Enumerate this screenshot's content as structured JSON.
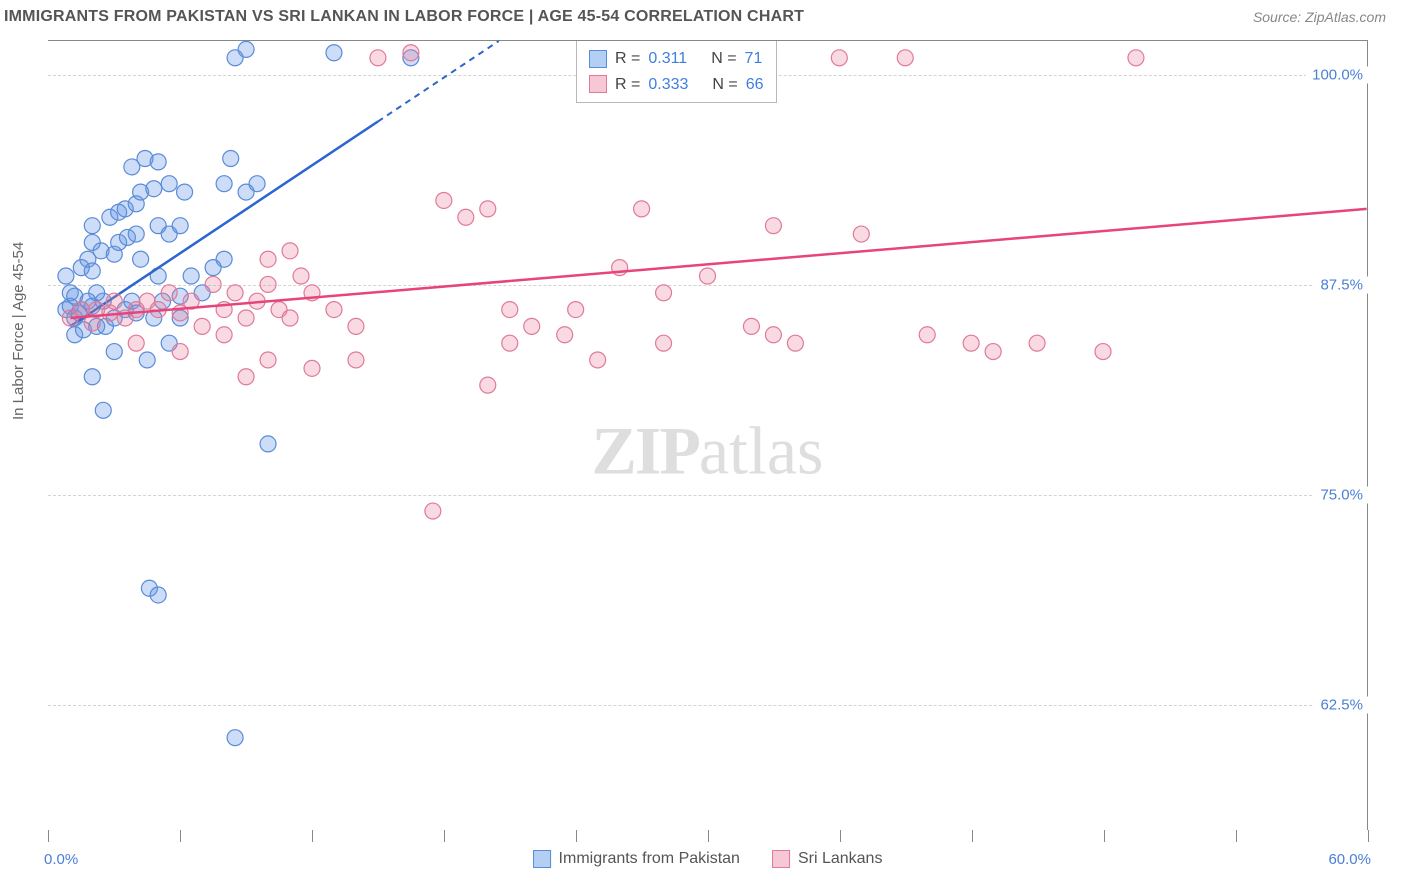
{
  "title": "IMMIGRANTS FROM PAKISTAN VS SRI LANKAN IN LABOR FORCE | AGE 45-54 CORRELATION CHART",
  "source": "Source: ZipAtlas.com",
  "watermark": {
    "zip": "ZIP",
    "atlas": "atlas"
  },
  "yaxis_title": "In Labor Force | Age 45-54",
  "chart": {
    "type": "scatter",
    "xlim": [
      0.0,
      60.0
    ],
    "ylim": [
      55.0,
      102.0
    ],
    "x_tick_positions": [
      0,
      6,
      12,
      18,
      24,
      30,
      36,
      42,
      48,
      54,
      60
    ],
    "x_label_min": "0.0%",
    "x_label_max": "60.0%",
    "y_gridlines": [
      {
        "value": 100.0,
        "label": "100.0%"
      },
      {
        "value": 87.5,
        "label": "87.5%"
      },
      {
        "value": 75.0,
        "label": "75.0%"
      },
      {
        "value": 62.5,
        "label": "62.5%"
      }
    ],
    "background_color": "#ffffff",
    "grid_color": "#d3d3d3",
    "axis_color": "#888888",
    "series": [
      {
        "id": "pakistan",
        "name": "Immigrants from Pakistan",
        "marker_fill": "rgba(100,150,230,0.32)",
        "marker_stroke": "#5a8bd8",
        "trend_stroke": "#2c66cc",
        "swatch_fill": "#b3cff3",
        "swatch_border": "#5a8bd8",
        "r_value": "0.311",
        "n_value": "71",
        "marker_radius": 8,
        "trend": {
          "x1": 1.0,
          "y1": 85.0,
          "x2": 20.5,
          "y2": 102.0,
          "dash_from_x": 15.0
        },
        "points": [
          {
            "x": 0.8,
            "y": 86.0
          },
          {
            "x": 1.0,
            "y": 86.2
          },
          {
            "x": 1.2,
            "y": 85.5
          },
          {
            "x": 1.5,
            "y": 86.0
          },
          {
            "x": 1.2,
            "y": 84.5
          },
          {
            "x": 1.6,
            "y": 84.8
          },
          {
            "x": 2.2,
            "y": 85.0
          },
          {
            "x": 1.0,
            "y": 87.0
          },
          {
            "x": 2.0,
            "y": 86.2
          },
          {
            "x": 2.5,
            "y": 86.5
          },
          {
            "x": 2.6,
            "y": 85.0
          },
          {
            "x": 3.0,
            "y": 85.5
          },
          {
            "x": 0.8,
            "y": 88.0
          },
          {
            "x": 1.5,
            "y": 88.5
          },
          {
            "x": 2.0,
            "y": 88.3
          },
          {
            "x": 2.2,
            "y": 87.0
          },
          {
            "x": 3.5,
            "y": 86.0
          },
          {
            "x": 3.8,
            "y": 86.5
          },
          {
            "x": 4.0,
            "y": 85.8
          },
          {
            "x": 4.8,
            "y": 85.5
          },
          {
            "x": 1.8,
            "y": 89.0
          },
          {
            "x": 2.4,
            "y": 89.5
          },
          {
            "x": 3.0,
            "y": 89.3
          },
          {
            "x": 3.2,
            "y": 90.0
          },
          {
            "x": 3.6,
            "y": 90.3
          },
          {
            "x": 4.2,
            "y": 89.0
          },
          {
            "x": 4.0,
            "y": 90.5
          },
          {
            "x": 5.0,
            "y": 88.0
          },
          {
            "x": 2.0,
            "y": 91.0
          },
          {
            "x": 2.8,
            "y": 91.5
          },
          {
            "x": 3.2,
            "y": 91.8
          },
          {
            "x": 3.5,
            "y": 92.0
          },
          {
            "x": 4.0,
            "y": 92.3
          },
          {
            "x": 4.2,
            "y": 93.0
          },
          {
            "x": 5.0,
            "y": 91.0
          },
          {
            "x": 5.5,
            "y": 90.5
          },
          {
            "x": 6.0,
            "y": 91.0
          },
          {
            "x": 2.0,
            "y": 90.0
          },
          {
            "x": 4.8,
            "y": 93.2
          },
          {
            "x": 5.5,
            "y": 93.5
          },
          {
            "x": 6.2,
            "y": 93.0
          },
          {
            "x": 3.8,
            "y": 94.5
          },
          {
            "x": 4.4,
            "y": 95.0
          },
          {
            "x": 5.0,
            "y": 94.8
          },
          {
            "x": 8.0,
            "y": 93.5
          },
          {
            "x": 9.0,
            "y": 93.0
          },
          {
            "x": 8.3,
            "y": 95.0
          },
          {
            "x": 9.5,
            "y": 93.5
          },
          {
            "x": 8.5,
            "y": 101.0
          },
          {
            "x": 9.0,
            "y": 101.5
          },
          {
            "x": 13.0,
            "y": 101.3
          },
          {
            "x": 16.5,
            "y": 101.0
          },
          {
            "x": 8.0,
            "y": 89.0
          },
          {
            "x": 3.0,
            "y": 83.5
          },
          {
            "x": 4.5,
            "y": 83.0
          },
          {
            "x": 5.5,
            "y": 84.0
          },
          {
            "x": 2.0,
            "y": 82.0
          },
          {
            "x": 2.5,
            "y": 80.0
          },
          {
            "x": 10.0,
            "y": 78.0
          },
          {
            "x": 8.5,
            "y": 60.5
          },
          {
            "x": 4.6,
            "y": 69.4
          },
          {
            "x": 5.0,
            "y": 69.0
          },
          {
            "x": 5.2,
            "y": 86.5
          },
          {
            "x": 6.0,
            "y": 86.8
          },
          {
            "x": 7.0,
            "y": 87.0
          },
          {
            "x": 6.5,
            "y": 88.0
          },
          {
            "x": 7.5,
            "y": 88.5
          },
          {
            "x": 6.0,
            "y": 85.5
          },
          {
            "x": 1.2,
            "y": 86.8
          },
          {
            "x": 1.4,
            "y": 85.8
          },
          {
            "x": 1.8,
            "y": 86.5
          }
        ]
      },
      {
        "id": "srilanka",
        "name": "Sri Lankans",
        "marker_fill": "rgba(235,130,160,0.30)",
        "marker_stroke": "#e07a9a",
        "trend_stroke": "#e6447a",
        "swatch_fill": "#f6c8d6",
        "swatch_border": "#e07a9a",
        "r_value": "0.333",
        "n_value": "66",
        "marker_radius": 8,
        "trend": {
          "x1": 1.0,
          "y1": 85.5,
          "x2": 60.0,
          "y2": 92.0
        },
        "points": [
          {
            "x": 1.0,
            "y": 85.5
          },
          {
            "x": 1.5,
            "y": 86.0
          },
          {
            "x": 2.0,
            "y": 85.2
          },
          {
            "x": 2.2,
            "y": 86.0
          },
          {
            "x": 2.8,
            "y": 85.8
          },
          {
            "x": 3.0,
            "y": 86.5
          },
          {
            "x": 3.5,
            "y": 85.5
          },
          {
            "x": 4.0,
            "y": 86.0
          },
          {
            "x": 4.5,
            "y": 86.5
          },
          {
            "x": 5.0,
            "y": 86.0
          },
          {
            "x": 5.5,
            "y": 87.0
          },
          {
            "x": 6.0,
            "y": 85.8
          },
          {
            "x": 6.5,
            "y": 86.5
          },
          {
            "x": 7.0,
            "y": 85.0
          },
          {
            "x": 7.5,
            "y": 87.5
          },
          {
            "x": 8.0,
            "y": 86.0
          },
          {
            "x": 8.5,
            "y": 87.0
          },
          {
            "x": 9.0,
            "y": 85.5
          },
          {
            "x": 9.5,
            "y": 86.5
          },
          {
            "x": 10.0,
            "y": 87.5
          },
          {
            "x": 10.5,
            "y": 86.0
          },
          {
            "x": 11.0,
            "y": 85.5
          },
          {
            "x": 11.5,
            "y": 88.0
          },
          {
            "x": 12.0,
            "y": 87.0
          },
          {
            "x": 13.0,
            "y": 86.0
          },
          {
            "x": 14.0,
            "y": 85.0
          },
          {
            "x": 10.0,
            "y": 89.0
          },
          {
            "x": 11.0,
            "y": 89.5
          },
          {
            "x": 15.0,
            "y": 101.0
          },
          {
            "x": 16.5,
            "y": 101.3
          },
          {
            "x": 18.0,
            "y": 92.5
          },
          {
            "x": 19.0,
            "y": 91.5
          },
          {
            "x": 20.0,
            "y": 92.0
          },
          {
            "x": 21.0,
            "y": 84.0
          },
          {
            "x": 22.0,
            "y": 85.0
          },
          {
            "x": 23.5,
            "y": 84.5
          },
          {
            "x": 24.0,
            "y": 86.0
          },
          {
            "x": 25.0,
            "y": 83.0
          },
          {
            "x": 26.0,
            "y": 88.5
          },
          {
            "x": 27.0,
            "y": 92.0
          },
          {
            "x": 28.0,
            "y": 84.0
          },
          {
            "x": 30.0,
            "y": 88.0
          },
          {
            "x": 32.0,
            "y": 85.0
          },
          {
            "x": 33.0,
            "y": 91.0
          },
          {
            "x": 33.0,
            "y": 84.5
          },
          {
            "x": 34.0,
            "y": 84.0
          },
          {
            "x": 36.0,
            "y": 101.0
          },
          {
            "x": 37.0,
            "y": 90.5
          },
          {
            "x": 39.0,
            "y": 101.0
          },
          {
            "x": 40.0,
            "y": 84.5
          },
          {
            "x": 42.0,
            "y": 84.0
          },
          {
            "x": 43.0,
            "y": 83.5
          },
          {
            "x": 45.0,
            "y": 84.0
          },
          {
            "x": 48.0,
            "y": 83.5
          },
          {
            "x": 49.5,
            "y": 101.0
          },
          {
            "x": 17.5,
            "y": 74.0
          },
          {
            "x": 20.0,
            "y": 81.5
          },
          {
            "x": 9.0,
            "y": 82.0
          },
          {
            "x": 10.0,
            "y": 83.0
          },
          {
            "x": 12.0,
            "y": 82.5
          },
          {
            "x": 14.0,
            "y": 83.0
          },
          {
            "x": 8.0,
            "y": 84.5
          },
          {
            "x": 6.0,
            "y": 83.5
          },
          {
            "x": 4.0,
            "y": 84.0
          },
          {
            "x": 28.0,
            "y": 87.0
          },
          {
            "x": 21.0,
            "y": 86.0
          }
        ]
      }
    ]
  },
  "legend_stats": {
    "r_label": "R",
    "n_label": "N",
    "eq": "="
  },
  "bottom_legend": [
    {
      "series": "pakistan"
    },
    {
      "series": "srilanka"
    }
  ]
}
